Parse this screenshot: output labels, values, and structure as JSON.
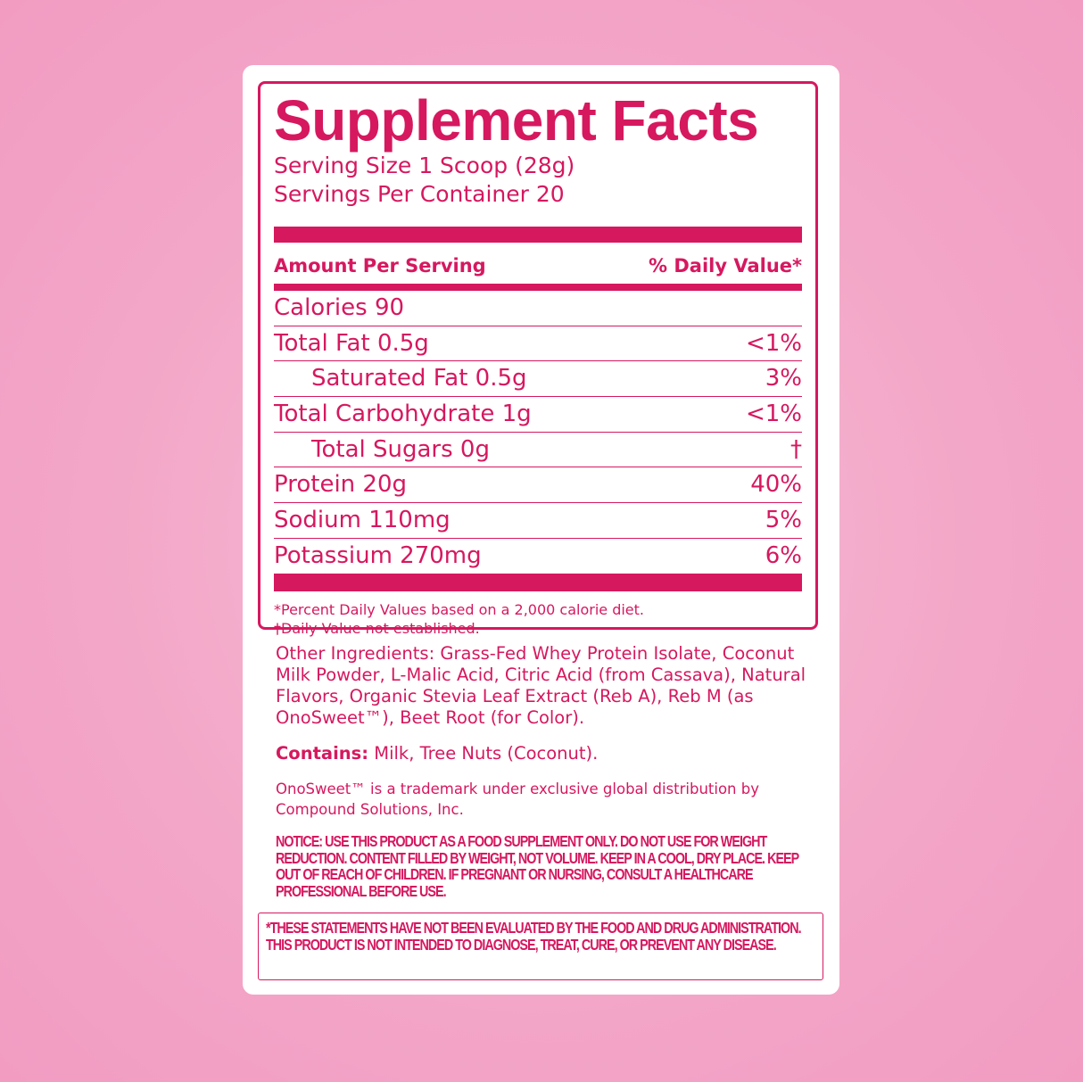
{
  "facts": {
    "title": "Supplement Facts",
    "serving_size": "Serving Size 1 Scoop (28g)",
    "servings_per_container": "Servings Per Container 20",
    "amount_header": "Amount Per Serving",
    "dv_header": "% Daily Value*",
    "rows": [
      {
        "label": "Calories 90"
      },
      {
        "label": "Total Fat 0.5g",
        "dv": "<1%"
      },
      {
        "label": "Saturated Fat 0.5g",
        "dv": "3%"
      },
      {
        "label": "Total Carbohydrate 1g",
        "dv": "<1%"
      },
      {
        "label": "Total Sugars 0g",
        "dv": "†"
      },
      {
        "label": "Protein 20g",
        "dv": "40%"
      },
      {
        "label": "Sodium 110mg",
        "dv": "5%"
      },
      {
        "label": "Potassium 270mg",
        "dv": "6%"
      }
    ],
    "footnotes": [
      "*Percent Daily Values based on a 2,000 calorie diet.",
      "†Daily Value not established."
    ]
  },
  "ingredients": "Other Ingredients: Grass-Fed Whey Protein Isolate, Coconut Milk Powder, L-Malic Acid, Citric Acid (from Cassava), Natural Flavors, Organic Stevia Leaf Extract (Reb A), Reb M (as OnoSweet™), Beet Root (for Color).",
  "contains": {
    "label": "Contains:",
    "text": "Milk, Tree Nuts (Coconut)."
  },
  "trademark": "OnoSweet™ is a trademark under exclusive global distribution by Compound Solutions, Inc.",
  "notice": "NOTICE: USE THIS PRODUCT AS A FOOD SUPPLEMENT ONLY. DO NOT USE FOR WEIGHT REDUCTION. CONTENT FILLED BY WEIGHT, NOT VOLUME. KEEP IN A COOL, DRY PLACE. KEEP OUT OF REACH OF CHILDREN. IF PREGNANT OR NURSING, CONSULT A HEALTHCARE PROFESSIONAL BEFORE USE.",
  "disclaimer": "*THESE STATEMENTS HAVE NOT BEEN EVALUATED BY THE FOOD AND DRUG ADMINISTRATION. THIS PRODUCT IS NOT INTENDED TO DIAGNOSE, TREAT, CURE, OR PREVENT ANY DISEASE."
}
